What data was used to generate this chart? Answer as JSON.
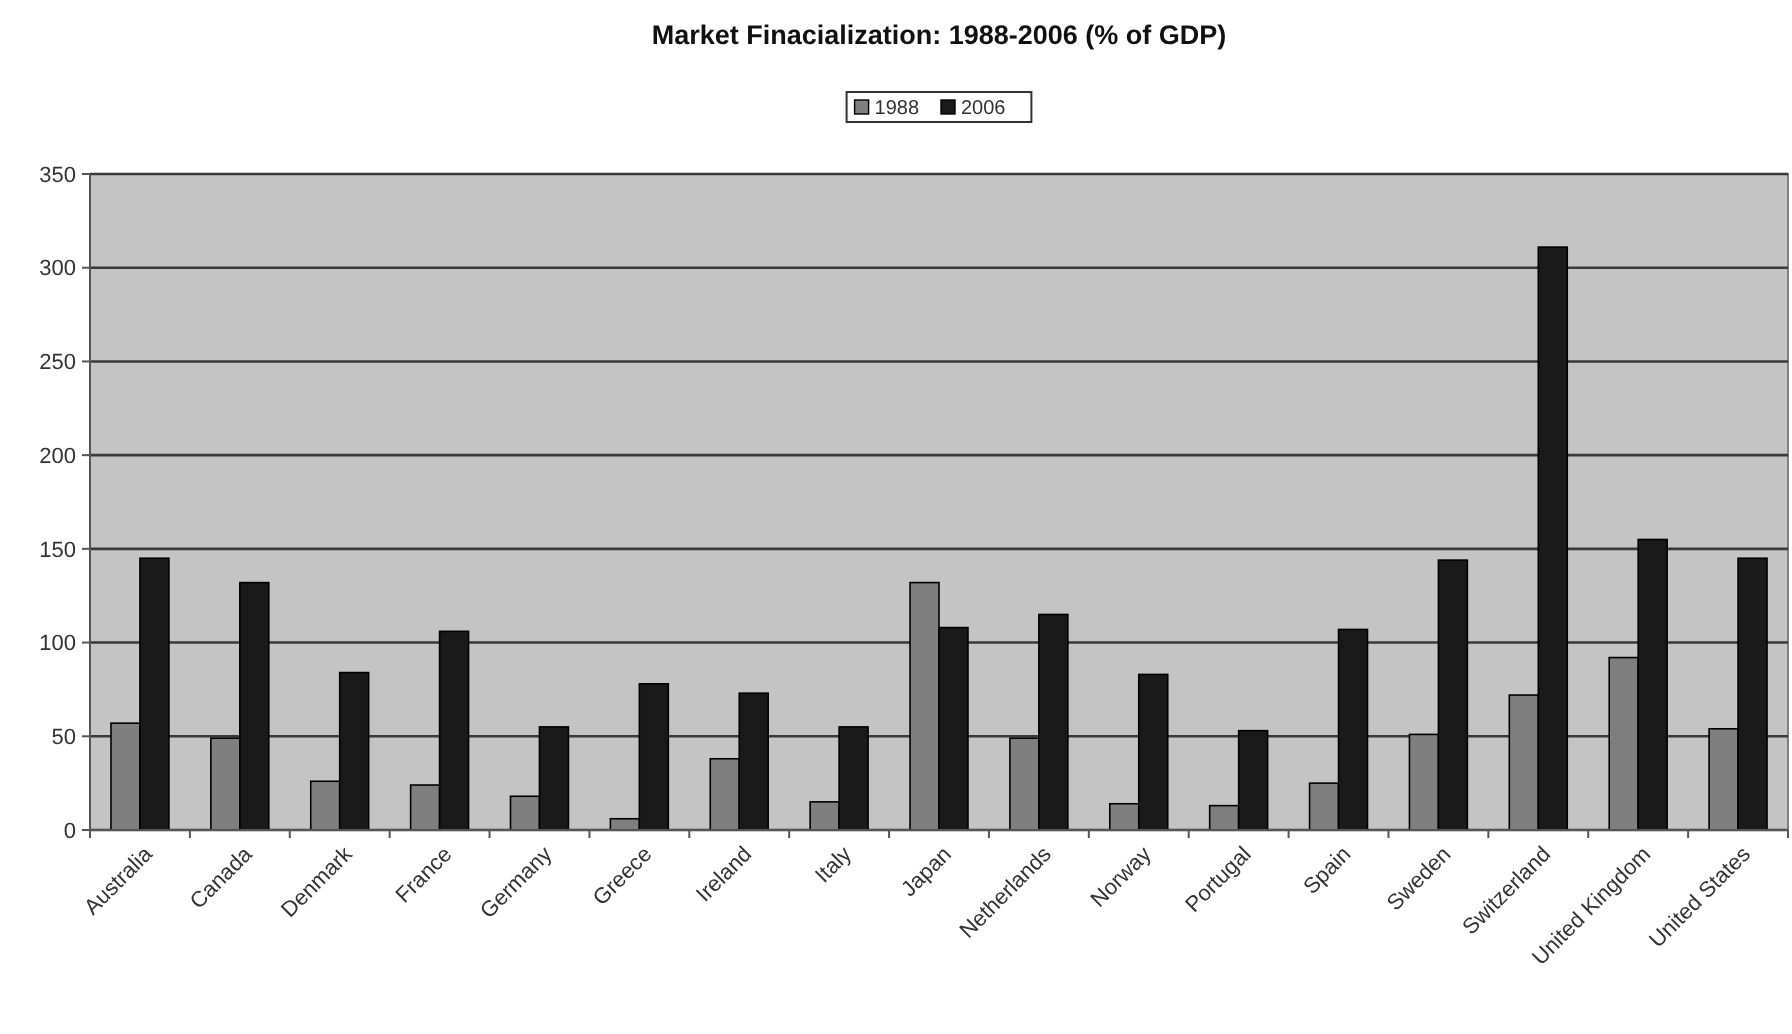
{
  "chart_data": {
    "type": "bar",
    "title": "Market Finacialization: 1988-2006 (% of GDP)",
    "categories": [
      "Australia",
      "Canada",
      "Denmark",
      "France",
      "Germany",
      "Greece",
      "Ireland",
      "Italy",
      "Japan",
      "Netherlands",
      "Norway",
      "Portugal",
      "Spain",
      "Sweden",
      "Switzerland",
      "United Kingdom",
      "United States"
    ],
    "series": [
      {
        "name": "1988",
        "color": "#7f7f7f",
        "values": [
          57,
          49,
          26,
          24,
          18,
          6,
          38,
          15,
          132,
          49,
          14,
          13,
          25,
          51,
          72,
          92,
          54
        ]
      },
      {
        "name": "2006",
        "color": "#1a1a1a",
        "values": [
          145,
          132,
          84,
          106,
          55,
          78,
          73,
          55,
          108,
          115,
          83,
          53,
          107,
          144,
          311,
          155,
          145
        ]
      }
    ],
    "ylim": [
      0,
      350
    ],
    "yticks": [
      0,
      50,
      100,
      150,
      200,
      250,
      300,
      350
    ],
    "grid": "y",
    "legend": "top"
  }
}
